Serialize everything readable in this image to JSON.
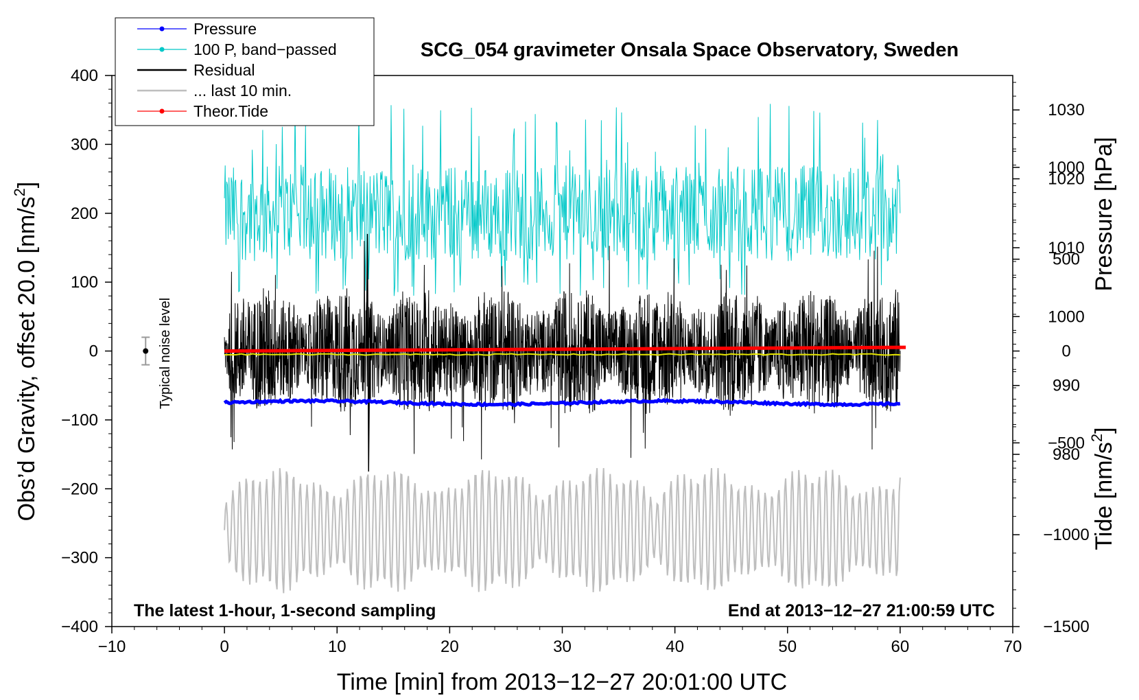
{
  "chart_data": {
    "type": "line",
    "title": "SCG_054 gravimeter Onsala Space Observatory, Sweden",
    "xlabel": "Time [min] from 2013−12−27 20:01:00 UTC",
    "ylabel_left": "Obs’d Gravity, offset 20.0 [nm/s",
    "ylabel_left_unit_close": "]",
    "ylabel_right_pressure": "Pressure [hPa]",
    "ylabel_right_tide": "Tide [nm/s",
    "ylabel_right_tide_close": "]",
    "superscript": "2",
    "corner_left": "The latest 1-hour, 1-second sampling",
    "corner_right": "End at 2013−12−27 21:00:59 UTC",
    "noise_label": "Typical noise level",
    "xlim": [
      -10,
      70
    ],
    "ylim_left": [
      -400,
      400
    ],
    "ylim_pressure": [
      955,
      1035
    ],
    "ylim_tide": [
      -1500,
      1500
    ],
    "x_ticks": [
      "−10",
      "0",
      "10",
      "20",
      "30",
      "40",
      "50",
      "60",
      "70"
    ],
    "x_tick_values": [
      -10,
      0,
      10,
      20,
      30,
      40,
      50,
      60,
      70
    ],
    "y_left_ticks": [
      "400",
      "300",
      "200",
      "100",
      "0",
      "−100",
      "−200",
      "−300",
      "−400"
    ],
    "y_left_tick_values": [
      400,
      300,
      200,
      100,
      0,
      -100,
      -200,
      -300,
      -400
    ],
    "y_pressure_ticks": [
      "1030",
      "1020",
      "1010",
      "1000",
      "990",
      "980"
    ],
    "y_pressure_tick_values": [
      1030,
      1020,
      1010,
      1000,
      990,
      980
    ],
    "y_tide_ticks": [
      "1000",
      "500",
      "0",
      "−500",
      "−1000",
      "−1500"
    ],
    "y_tide_tick_values": [
      1000,
      500,
      0,
      -500,
      -1000,
      -1500
    ],
    "legend": [
      {
        "label": "Pressure",
        "color": "#0000ff",
        "marker": true
      },
      {
        "label": "100 P, band−passed",
        "color": "#00c8c8",
        "marker": true
      },
      {
        "label": "Residual",
        "color": "#000000",
        "marker": false
      },
      {
        "label": "... last 10 min.",
        "color": "#bebebe",
        "marker": false
      },
      {
        "label": "Theor.Tide",
        "color": "#ff0000",
        "marker": true
      }
    ],
    "series": [
      {
        "name": "Pressure",
        "axis": "pressure",
        "color": "#0000ff",
        "x_range": [
          0,
          60
        ],
        "y_start": 987.5,
        "y_end": 987.5,
        "noise": 0.3
      },
      {
        "name": "100 P, band-passed",
        "axis": "left",
        "color": "#00c8c8",
        "x_range": [
          0,
          60
        ],
        "center": 200,
        "amplitude": 70,
        "spike_max": 360,
        "min": 80
      },
      {
        "name": "Residual",
        "axis": "left",
        "color": "#000000",
        "x_range": [
          0,
          60
        ],
        "center": 0,
        "amplitude": 60,
        "spike_max": 170,
        "spike_min": -175
      },
      {
        "name": "Residual mean",
        "axis": "left",
        "color": "#e6e600",
        "x_range": [
          0,
          60
        ],
        "value": -5
      },
      {
        "name": "... last 10 min.",
        "axis": "left",
        "color": "#bebebe",
        "x_range": [
          0,
          60
        ],
        "center": -260,
        "amplitude": 55,
        "max": -170,
        "min": -360
      },
      {
        "name": "Theor.Tide",
        "axis": "tide",
        "color": "#ff0000",
        "x_range": [
          0,
          60.5
        ],
        "y_start": 0,
        "y_end": 20
      }
    ],
    "noise_marker": {
      "x": -7,
      "y": 0,
      "err": 20
    }
  }
}
